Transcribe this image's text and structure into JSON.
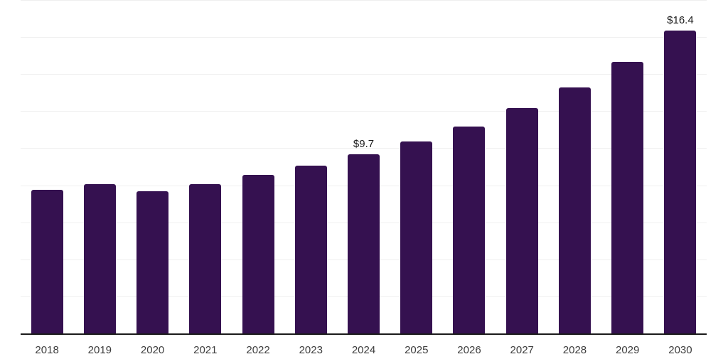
{
  "chart_data": {
    "type": "bar",
    "categories": [
      "2018",
      "2019",
      "2020",
      "2021",
      "2022",
      "2023",
      "2024",
      "2025",
      "2026",
      "2027",
      "2028",
      "2029",
      "2030"
    ],
    "values": [
      7.8,
      8.1,
      7.7,
      8.1,
      8.6,
      9.1,
      9.7,
      10.4,
      11.2,
      12.2,
      13.3,
      14.7,
      16.4
    ],
    "data_labels": [
      {
        "category": "2024",
        "text": "$9.7"
      },
      {
        "category": "2030",
        "text": "$16.4"
      }
    ],
    "title": "",
    "xlabel": "",
    "ylabel": "",
    "ylim": [
      0,
      18
    ],
    "gridline_step": 2,
    "grid": true,
    "legend": false,
    "y_axis_labels_visible": false,
    "colors": {
      "bar": "#351150",
      "gridline": "#efefef",
      "axis_line": "#1a1a1a",
      "tick_label": "#3d3d3d",
      "data_label": "#1a1a1a",
      "background": "#ffffff"
    }
  }
}
